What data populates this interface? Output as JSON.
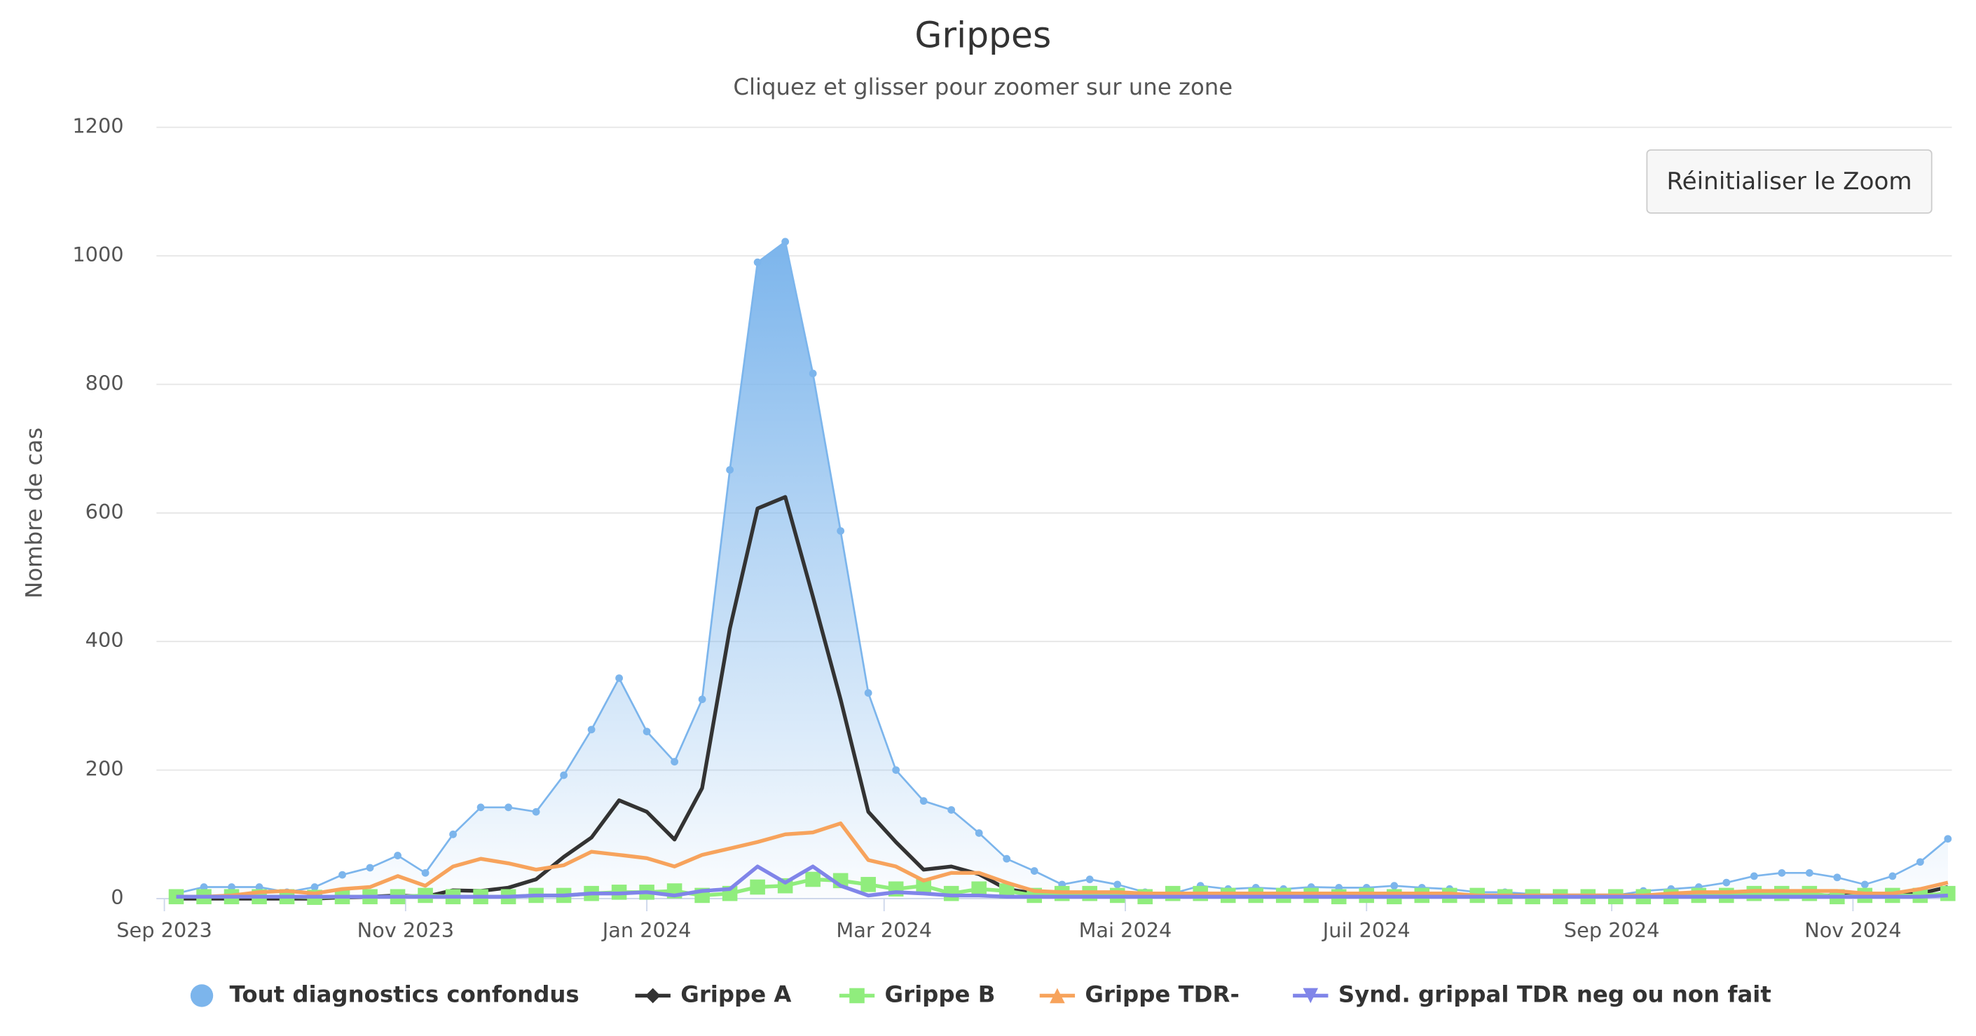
{
  "chart_data": {
    "type": "line",
    "title": "Grippes",
    "subtitle": "Cliquez et glisser pour zoomer sur une zone",
    "y_label": "Nombre de cas",
    "button": "Réinitialiser le Zoom",
    "x": [
      "2023-09-04",
      "2023-09-11",
      "2023-09-18",
      "2023-09-25",
      "2023-10-02",
      "2023-10-09",
      "2023-10-16",
      "2023-10-23",
      "2023-10-30",
      "2023-11-06",
      "2023-11-13",
      "2023-11-20",
      "2023-11-27",
      "2023-12-04",
      "2023-12-11",
      "2023-12-18",
      "2023-12-25",
      "2024-01-01",
      "2024-01-08",
      "2024-01-15",
      "2024-01-22",
      "2024-01-29",
      "2024-02-05",
      "2024-02-12",
      "2024-02-19",
      "2024-02-26",
      "2024-03-04",
      "2024-03-11",
      "2024-03-18",
      "2024-03-25",
      "2024-04-01",
      "2024-04-08",
      "2024-04-15",
      "2024-04-22",
      "2024-04-29",
      "2024-05-06",
      "2024-05-13",
      "2024-05-20",
      "2024-05-27",
      "2024-06-03",
      "2024-06-10",
      "2024-06-17",
      "2024-06-24",
      "2024-07-01",
      "2024-07-08",
      "2024-07-15",
      "2024-07-22",
      "2024-07-29",
      "2024-08-05",
      "2024-08-12",
      "2024-08-19",
      "2024-08-26",
      "2024-09-02",
      "2024-09-09",
      "2024-09-16",
      "2024-09-23",
      "2024-09-30",
      "2024-10-07",
      "2024-10-14",
      "2024-10-21",
      "2024-10-28",
      "2024-11-04",
      "2024-11-11",
      "2024-11-18",
      "2024-11-25"
    ],
    "xlim": [
      "2023-08-30",
      "2024-11-26"
    ],
    "xticks": [
      {
        "value": "2023-09-01",
        "label": "Sep 2023"
      },
      {
        "value": "2023-11-01",
        "label": "Nov 2023"
      },
      {
        "value": "2024-01-01",
        "label": "Jan 2024"
      },
      {
        "value": "2024-03-01",
        "label": "Mar 2024"
      },
      {
        "value": "2024-05-01",
        "label": "Mai 2024"
      },
      {
        "value": "2024-07-01",
        "label": "Juil 2024"
      },
      {
        "value": "2024-09-01",
        "label": "Sep 2024"
      },
      {
        "value": "2024-11-01",
        "label": "Nov 2024"
      }
    ],
    "ylim": [
      0,
      1200
    ],
    "yticks": [
      0,
      200,
      400,
      600,
      800,
      1000,
      1200
    ],
    "grid": true,
    "legend": "bottom",
    "series": [
      {
        "name": "Tout diagnostics confondus",
        "color": "#7cb5ec",
        "marker": "circle",
        "area": true,
        "values": [
          8,
          18,
          18,
          18,
          10,
          18,
          37,
          48,
          67,
          40,
          100,
          142,
          142,
          135,
          192,
          263,
          343,
          260,
          213,
          310,
          667,
          990,
          1022,
          817,
          572,
          320,
          200,
          152,
          138,
          102,
          62,
          43,
          22,
          30,
          22,
          10,
          8,
          20,
          15,
          17,
          15,
          18,
          17,
          17,
          20,
          17,
          15,
          10,
          10,
          7,
          5,
          6,
          5,
          12,
          15,
          18,
          25,
          35,
          40,
          40,
          33,
          22,
          35,
          57,
          93
        ]
      },
      {
        "name": "Grippe A",
        "color": "#333333",
        "marker": "diamond",
        "values": [
          0,
          0,
          0,
          0,
          0,
          0,
          2,
          3,
          5,
          3,
          13,
          12,
          17,
          30,
          65,
          95,
          153,
          135,
          92,
          172,
          420,
          607,
          625,
          470,
          310,
          135,
          88,
          45,
          50,
          38,
          15,
          8,
          5,
          5,
          5,
          5,
          5,
          5,
          5,
          5,
          5,
          5,
          5,
          5,
          5,
          5,
          5,
          5,
          5,
          5,
          5,
          5,
          5,
          5,
          5,
          5,
          5,
          5,
          5,
          5,
          5,
          5,
          5,
          8,
          18
        ]
      },
      {
        "name": "Grippe B",
        "color": "#90ed7d",
        "marker": "square",
        "values": [
          3,
          3,
          3,
          3,
          3,
          2,
          3,
          3,
          3,
          5,
          3,
          3,
          3,
          5,
          5,
          8,
          10,
          10,
          12,
          5,
          8,
          18,
          20,
          30,
          28,
          22,
          15,
          20,
          8,
          15,
          12,
          5,
          8,
          8,
          5,
          3,
          8,
          8,
          5,
          5,
          5,
          5,
          3,
          5,
          3,
          5,
          5,
          5,
          3,
          3,
          3,
          3,
          3,
          3,
          3,
          5,
          5,
          8,
          8,
          8,
          3,
          5,
          5,
          5,
          8
        ]
      },
      {
        "name": "Grippe TDR-",
        "color": "#f7a35c",
        "marker": "triangle",
        "values": [
          3,
          3,
          5,
          10,
          12,
          8,
          15,
          18,
          35,
          20,
          50,
          62,
          55,
          45,
          52,
          73,
          68,
          63,
          50,
          68,
          78,
          88,
          100,
          103,
          117,
          60,
          50,
          28,
          40,
          40,
          25,
          12,
          10,
          10,
          10,
          8,
          8,
          8,
          8,
          8,
          8,
          8,
          8,
          8,
          8,
          8,
          8,
          5,
          5,
          5,
          5,
          5,
          5,
          5,
          8,
          10,
          10,
          12,
          12,
          12,
          12,
          8,
          8,
          15,
          25
        ]
      },
      {
        "name": "Synd. grippal TDR neg ou non fait",
        "color": "#8085e9",
        "marker": "triangle-down",
        "values": [
          3,
          3,
          3,
          3,
          3,
          3,
          3,
          3,
          3,
          3,
          3,
          3,
          3,
          5,
          5,
          8,
          8,
          10,
          5,
          12,
          15,
          50,
          25,
          50,
          20,
          5,
          10,
          8,
          5,
          5,
          3,
          3,
          3,
          3,
          3,
          3,
          3,
          3,
          3,
          3,
          3,
          3,
          3,
          3,
          3,
          3,
          3,
          3,
          3,
          3,
          3,
          3,
          3,
          3,
          3,
          3,
          3,
          3,
          3,
          3,
          3,
          3,
          3,
          3,
          5
        ]
      }
    ]
  }
}
